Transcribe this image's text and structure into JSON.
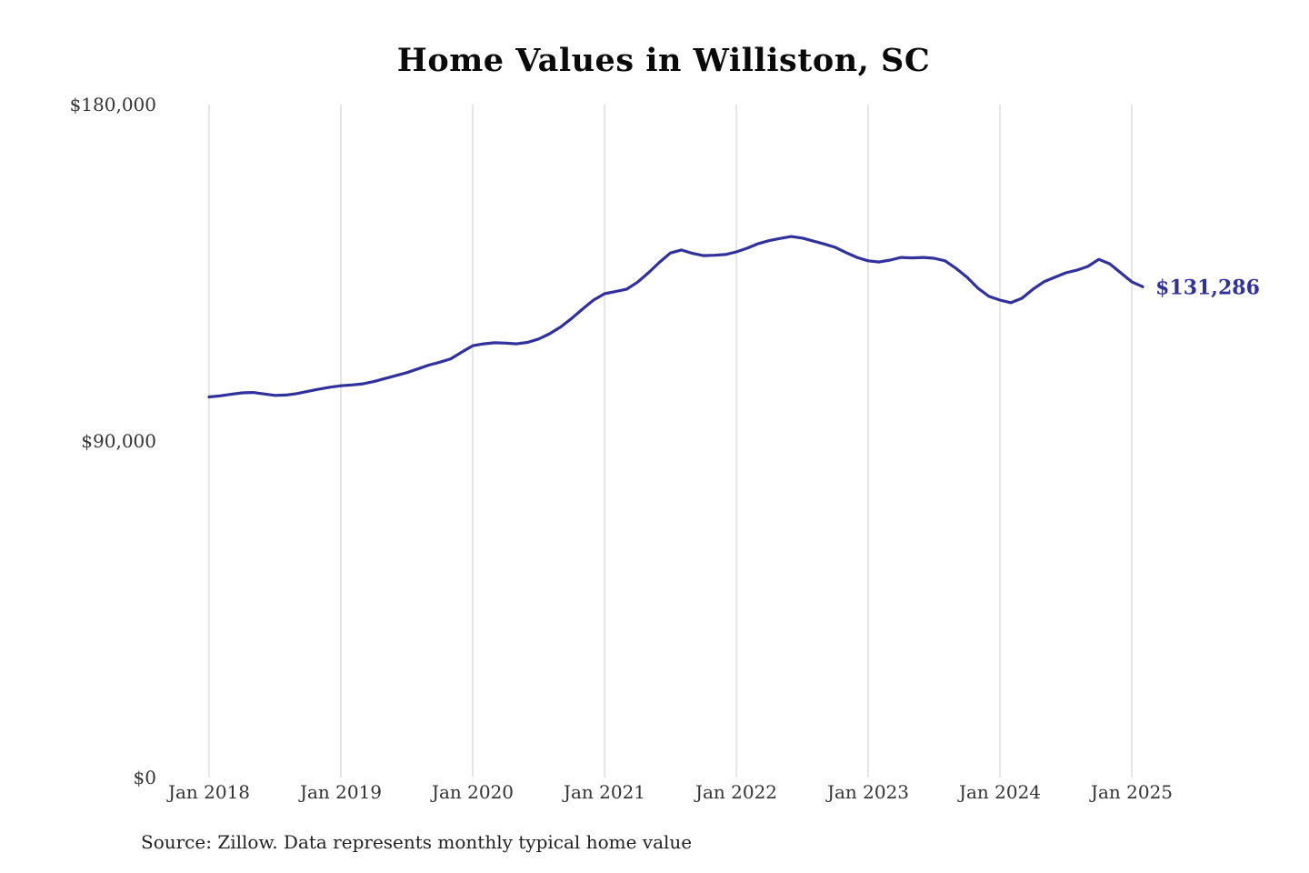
{
  "page": {
    "title": "Home Values in Williston, SC",
    "source": "Source: Zillow. Data represents monthly typical home value"
  },
  "chart_data": {
    "type": "line",
    "title": "Home Values in Williston, SC",
    "series_name": "Monthly typical home value",
    "frequency": "monthly",
    "start_month": "2018-01",
    "end_month": "2025-02",
    "x_tick_labels": [
      "Jan 2018",
      "Jan 2019",
      "Jan 2020",
      "Jan 2021",
      "Jan 2022",
      "Jan 2023",
      "Jan 2024",
      "Jan 2025"
    ],
    "y_tick_labels": [
      "$0",
      "$90,000",
      "$180,000"
    ],
    "y_tick_values": [
      0,
      90000,
      180000
    ],
    "ylim": [
      0,
      180000
    ],
    "grid": "vertical-only",
    "legend": "none",
    "end_label": "$131,286",
    "end_value": 131286,
    "line_color": "#31319b",
    "grid_color": "#cccccc",
    "values": [
      101800,
      102100,
      102500,
      102900,
      103000,
      102600,
      102200,
      102300,
      102700,
      103300,
      103900,
      104400,
      104800,
      105000,
      105300,
      105900,
      106700,
      107500,
      108300,
      109300,
      110300,
      111100,
      112000,
      113800,
      115500,
      116000,
      116300,
      116200,
      116000,
      116400,
      117300,
      118700,
      120500,
      122800,
      125300,
      127700,
      129400,
      130000,
      130600,
      132500,
      135000,
      137800,
      140300,
      141100,
      140200,
      139600,
      139700,
      139900,
      140600,
      141600,
      142800,
      143600,
      144200,
      144700,
      144300,
      143500,
      142700,
      141800,
      140400,
      139100,
      138200,
      137900,
      138400,
      139100,
      139000,
      139100,
      138900,
      138200,
      136200,
      133800,
      130900,
      128700,
      127700,
      127000,
      128200,
      130600,
      132600,
      133800,
      135000,
      135700,
      136700,
      138600,
      137400,
      135000,
      132600,
      131286
    ]
  }
}
